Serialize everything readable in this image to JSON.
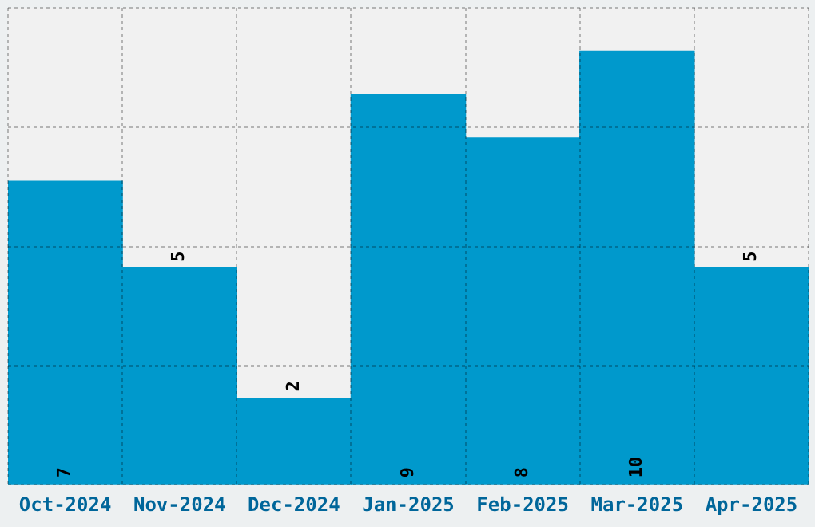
{
  "chart_data": {
    "type": "bar",
    "categories": [
      "Oct-2024",
      "Nov-2024",
      "Dec-2024",
      "Jan-2025",
      "Feb-2025",
      "Mar-2025",
      "Apr-2025"
    ],
    "values": [
      7,
      5,
      2,
      9,
      8,
      10,
      5
    ],
    "color": "#0099cc",
    "ylim": [
      0,
      11
    ],
    "yticks": [
      {
        "value": 0,
        "label": null
      },
      {
        "value": 2.75,
        "label": null
      },
      {
        "value": 5.5,
        "label": null
      },
      {
        "value": 8.25,
        "label": null
      },
      {
        "value": 11,
        "label": null
      }
    ],
    "tick_labels": "x",
    "grid": true,
    "data_labels": true,
    "legend": false
  }
}
